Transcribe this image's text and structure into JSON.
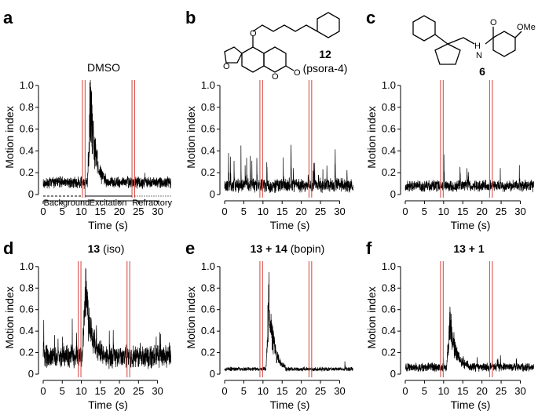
{
  "colors": {
    "trace": "#000000",
    "stim_line": "#d9534f",
    "axis": "#000000"
  },
  "shared_axes": {
    "xlabel": "Time (s)",
    "ylabel": "Motion index",
    "xlim": [
      0,
      34
    ],
    "ylim": [
      0,
      1.05
    ],
    "xticks": [
      0,
      5,
      10,
      15,
      20,
      25,
      30
    ],
    "yticks": [
      "0",
      "0.2",
      "0.4",
      "0.6",
      "0.8",
      "1.0"
    ]
  },
  "chart_data": [
    {
      "type": "line",
      "panel_letter": "a",
      "title": "DMSO",
      "stim_lines_s": [
        10.3,
        11.0,
        23.3,
        24.0
      ],
      "phase_labels": [
        "Background",
        "Excitation",
        "Refractory"
      ],
      "profile": {
        "baseline": 0.09,
        "noise": 0.04,
        "spike_rate": 0.03,
        "spike_amp": 0.05,
        "bursts": [
          {
            "start": 11.6,
            "end": 16.5,
            "peak": 1.05,
            "decay": 0.6
          }
        ]
      },
      "seed": 11
    },
    {
      "type": "line",
      "panel_letter": "b",
      "title": "",
      "compound_number": "12",
      "compound_name": "(psora-4)",
      "stim_lines_s": [
        9.2,
        9.9,
        22.0,
        22.7
      ],
      "profile": {
        "baseline": 0.06,
        "noise": 0.05,
        "spike_rate": 0.09,
        "spike_amp": 0.35,
        "bursts": []
      },
      "seed": 23
    },
    {
      "type": "line",
      "panel_letter": "c",
      "title": "",
      "compound_number": "6",
      "chem_label": "OMe",
      "stim_lines_s": [
        9.2,
        9.9,
        22.0,
        22.7
      ],
      "profile": {
        "baseline": 0.06,
        "noise": 0.04,
        "spike_rate": 0.06,
        "spike_amp": 0.35,
        "bursts": []
      },
      "seed": 37
    },
    {
      "type": "line",
      "panel_letter": "d",
      "title": "13",
      "title_suffix": "(iso)",
      "stim_lines_s": [
        9.2,
        9.9,
        22.0,
        22.7
      ],
      "profile": {
        "baseline": 0.12,
        "noise": 0.08,
        "spike_rate": 0.1,
        "spike_amp": 0.3,
        "bursts": [
          {
            "start": 10.2,
            "end": 16.5,
            "peak": 0.85,
            "decay": 0.5
          }
        ]
      },
      "seed": 41
    },
    {
      "type": "line",
      "panel_letter": "e",
      "title": "13 + 14",
      "title_suffix": "(bopin)",
      "stim_lines_s": [
        9.2,
        9.9,
        22.0,
        22.7
      ],
      "profile": {
        "baseline": 0.04,
        "noise": 0.015,
        "spike_rate": 0.01,
        "spike_amp": 0.1,
        "bursts": [
          {
            "start": 10.8,
            "end": 15.8,
            "peak": 0.95,
            "decay": 0.55
          }
        ]
      },
      "seed": 53
    },
    {
      "type": "line",
      "panel_letter": "f",
      "title": "13 + 1",
      "title_suffix": "",
      "stim_lines_s": [
        9.2,
        9.9,
        22.0,
        22.7
      ],
      "profile": {
        "baseline": 0.05,
        "noise": 0.03,
        "spike_rate": 0.05,
        "spike_amp": 0.15,
        "bursts": [
          {
            "start": 10.8,
            "end": 16.5,
            "peak": 0.6,
            "decay": 0.6
          }
        ]
      },
      "seed": 67
    }
  ]
}
